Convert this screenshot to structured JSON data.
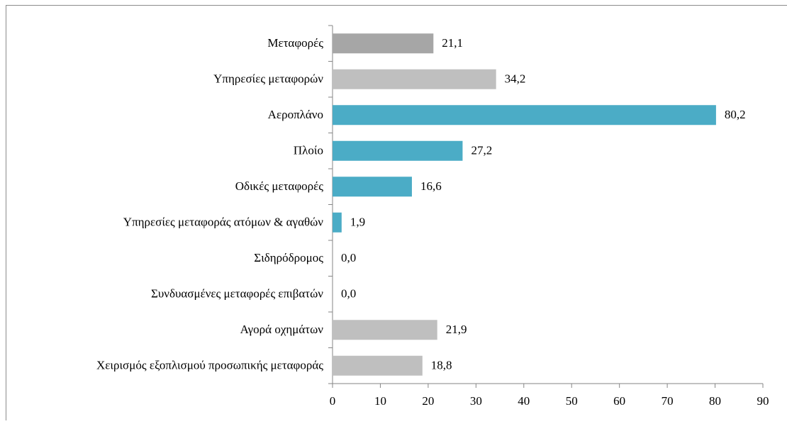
{
  "chart_data": {
    "type": "barh",
    "categories": [
      "Μεταφορές",
      "Υπηρεσίες μεταφορών",
      "Αεροπλάνο",
      "Πλοίο",
      "Οδικές μεταφορές",
      "Υπηρεσίες μεταφοράς ατόμων & αγαθών",
      "Σιδηρόδρομος",
      "Συνδυασμένες μεταφορές επιβατών",
      "Αγορά οχημάτων",
      "Χειρισμός εξοπλισμού προσωπικής μεταφοράς"
    ],
    "values": [
      21.1,
      34.2,
      80.2,
      27.2,
      16.6,
      1.9,
      0.0,
      0.0,
      21.9,
      18.8
    ],
    "value_labels": [
      "21,1",
      "34,2",
      "80,2",
      "27,2",
      "16,6",
      "1,9",
      "0,0",
      "0,0",
      "21,9",
      "18,8"
    ],
    "colors": [
      "#a6a6a6",
      "#bfbfbf",
      "#4bacc6",
      "#4bacc6",
      "#4bacc6",
      "#4bacc6",
      "#4bacc6",
      "#4bacc6",
      "#bfbfbf",
      "#bfbfbf"
    ],
    "xlim": [
      0,
      90
    ],
    "xticks": [
      0,
      10,
      20,
      30,
      40,
      50,
      60,
      70,
      80,
      90
    ]
  }
}
